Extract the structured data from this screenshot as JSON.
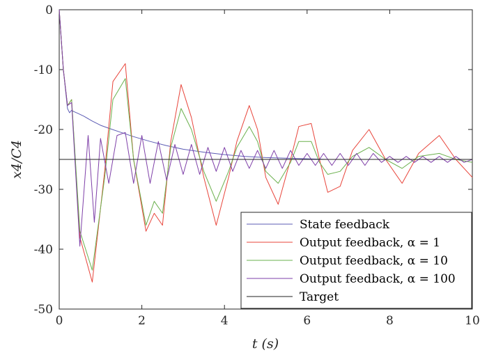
{
  "chart_data": {
    "type": "line",
    "xlabel": "t (s)",
    "ylabel": "x4/C4",
    "xlim": [
      0,
      10
    ],
    "ylim": [
      -50,
      0
    ],
    "xticks": [
      "0",
      "2",
      "4",
      "6",
      "8",
      "10"
    ],
    "yticks": [
      "0",
      "-10",
      "-20",
      "-30",
      "-40",
      "-50"
    ],
    "legend_position": "bottom-right",
    "series": [
      {
        "name": "State feedback",
        "color": "#5b5bb4",
        "x": [
          0,
          0.1,
          0.2,
          0.25,
          0.3,
          0.35,
          0.45,
          0.6,
          0.8,
          1.0,
          1.2,
          1.5,
          1.8,
          2.2,
          2.6,
          3.0,
          3.5,
          4.0,
          4.5,
          5.0,
          5.5,
          6.0,
          6.5,
          7.0,
          7.5,
          8.0,
          8.5,
          9.0,
          9.5,
          10.0
        ],
        "y": [
          0,
          -10,
          -16.5,
          -17.2,
          -16.8,
          -17.0,
          -17.3,
          -17.8,
          -18.6,
          -19.3,
          -19.8,
          -20.5,
          -21.2,
          -22.0,
          -22.7,
          -23.3,
          -23.8,
          -24.2,
          -24.5,
          -24.7,
          -24.8,
          -24.9,
          -25.0,
          -25.0,
          -25.0,
          -25.0,
          -25.0,
          -25.0,
          -25.0,
          -25.0
        ]
      },
      {
        "name": "Output feedback, α = 1",
        "color": "#e8443a",
        "x": [
          0,
          0.1,
          0.2,
          0.3,
          0.5,
          0.8,
          1.1,
          1.3,
          1.6,
          1.8,
          2.1,
          2.3,
          2.5,
          2.7,
          2.95,
          3.2,
          3.5,
          3.8,
          4.1,
          4.3,
          4.6,
          4.8,
          5.0,
          5.3,
          5.6,
          5.8,
          6.1,
          6.3,
          6.5,
          6.8,
          7.1,
          7.5,
          7.9,
          8.3,
          8.7,
          9.2,
          9.6,
          10.0
        ],
        "y": [
          0,
          -10,
          -16,
          -15,
          -38,
          -45.5,
          -27,
          -12,
          -9,
          -25,
          -37,
          -34,
          -36,
          -22,
          -12.5,
          -18,
          -28,
          -36,
          -28,
          -22,
          -16,
          -20,
          -28,
          -32.5,
          -25,
          -19.5,
          -19,
          -25,
          -30.5,
          -29.5,
          -23.5,
          -20,
          -25,
          -29,
          -24,
          -21,
          -25,
          -28
        ]
      },
      {
        "name": "Output feedback, α = 10",
        "color": "#6ab04c",
        "x": [
          0,
          0.1,
          0.2,
          0.3,
          0.5,
          0.8,
          1.1,
          1.3,
          1.6,
          1.8,
          2.1,
          2.3,
          2.5,
          2.7,
          2.95,
          3.2,
          3.5,
          3.8,
          4.1,
          4.3,
          4.6,
          4.8,
          5.0,
          5.3,
          5.6,
          5.8,
          6.1,
          6.3,
          6.5,
          6.8,
          7.1,
          7.5,
          7.9,
          8.3,
          8.7,
          9.2,
          9.6,
          10.0
        ],
        "y": [
          0,
          -10,
          -16,
          -15,
          -37,
          -43.5,
          -28,
          -15,
          -11.5,
          -25,
          -36,
          -32,
          -34,
          -23,
          -16.5,
          -20,
          -27,
          -32,
          -27,
          -23,
          -19.5,
          -22,
          -27,
          -29,
          -25.5,
          -22,
          -22,
          -25.5,
          -27.5,
          -27,
          -24.5,
          -23,
          -25,
          -26.5,
          -24.5,
          -24,
          -25,
          -25.5
        ]
      },
      {
        "name": "Output feedback, α = 100",
        "color": "#7e3fa8",
        "x": [
          0,
          0.1,
          0.2,
          0.3,
          0.5,
          0.7,
          0.85,
          1.0,
          1.2,
          1.4,
          1.6,
          1.8,
          2.0,
          2.2,
          2.4,
          2.6,
          2.8,
          3.0,
          3.2,
          3.4,
          3.6,
          3.8,
          4.0,
          4.2,
          4.4,
          4.6,
          4.8,
          5.0,
          5.2,
          5.4,
          5.6,
          5.8,
          6.0,
          6.2,
          6.4,
          6.6,
          6.8,
          7.0,
          7.2,
          7.4,
          7.6,
          7.8,
          8.0,
          8.2,
          8.4,
          8.6,
          8.8,
          9.0,
          9.2,
          9.4,
          9.6,
          9.8,
          10.0
        ],
        "y": [
          0,
          -10,
          -16,
          -15.5,
          -39.5,
          -21,
          -35.5,
          -21.5,
          -29,
          -21,
          -20.5,
          -29,
          -21,
          -29,
          -22,
          -28.5,
          -22.5,
          -27.5,
          -22.5,
          -27.5,
          -23,
          -27,
          -23,
          -27,
          -23.5,
          -26.5,
          -23.5,
          -26.5,
          -23.5,
          -26.5,
          -23.5,
          -26,
          -24,
          -26,
          -24,
          -26,
          -24,
          -26,
          -24,
          -26,
          -24,
          -25.5,
          -24.5,
          -25.5,
          -24.5,
          -25.5,
          -24.5,
          -25.5,
          -24.5,
          -25.5,
          -24.5,
          -25.5,
          -25
        ]
      },
      {
        "name": "Target",
        "color": "#222222",
        "x": [
          0,
          10
        ],
        "y": [
          -25,
          -25
        ]
      }
    ]
  }
}
